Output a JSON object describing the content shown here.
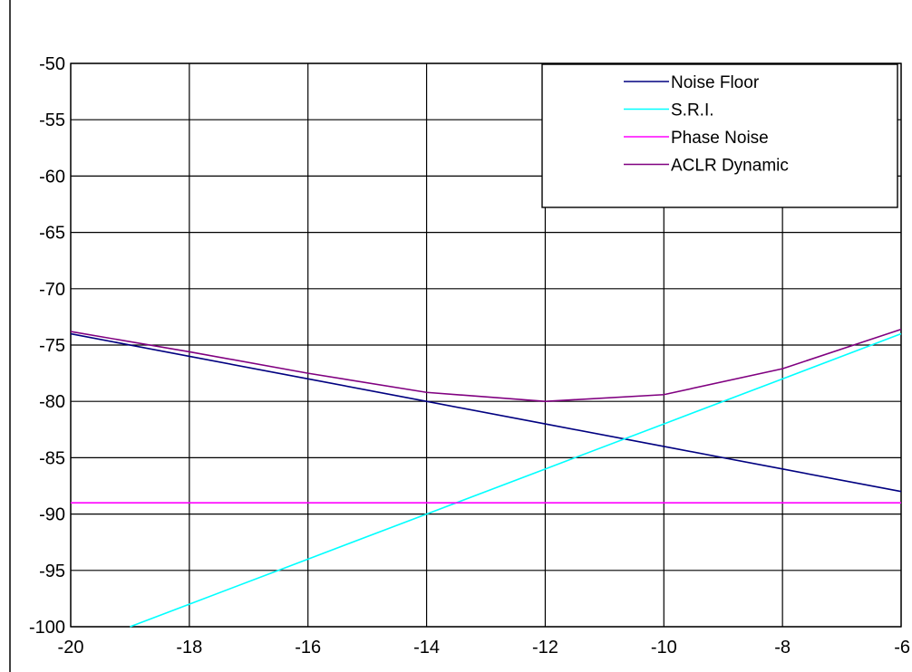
{
  "chart_data": {
    "type": "line",
    "title": "",
    "xlabel": "",
    "ylabel": "",
    "xlim": [
      -20,
      -6
    ],
    "ylim": [
      -100,
      -50
    ],
    "x_ticks": [
      -20,
      -18,
      -16,
      -14,
      -12,
      -10,
      -8,
      -6
    ],
    "y_ticks": [
      -50,
      -55,
      -60,
      -65,
      -70,
      -75,
      -80,
      -85,
      -90,
      -95,
      -100
    ],
    "x_tick_labels": [
      "-20",
      "-18",
      "-16",
      "-14",
      "-12",
      "-10",
      "-8",
      "-6"
    ],
    "y_tick_labels": [
      "-50",
      "-55",
      "-60",
      "-65",
      "-70",
      "-75",
      "-80",
      "-85",
      "-90",
      "-95",
      "-100"
    ],
    "grid": true,
    "legend_position": "top-right",
    "series": [
      {
        "name": "Noise Floor",
        "color": "#000080",
        "x": [
          -20,
          -18,
          -16,
          -14,
          -12,
          -10,
          -8,
          -6
        ],
        "y": [
          -74,
          -76,
          -78,
          -80,
          -82,
          -84,
          -86,
          -88
        ]
      },
      {
        "name": "S.R.I.",
        "color": "#00FFFF",
        "x": [
          -19,
          -18,
          -16,
          -14,
          -12,
          -10,
          -8,
          -6
        ],
        "y": [
          -100,
          -98,
          -94,
          -90,
          -86,
          -82,
          -78,
          -74
        ]
      },
      {
        "name": "Phase Noise",
        "color": "#FF00FF",
        "x": [
          -20,
          -18,
          -16,
          -14,
          -12,
          -10,
          -8,
          -6
        ],
        "y": [
          -89,
          -89,
          -89,
          -89,
          -89,
          -89,
          -89,
          -89
        ]
      },
      {
        "name": "ACLR Dynamic",
        "color": "#800080",
        "x": [
          -20,
          -18,
          -16,
          -14,
          -12,
          -10,
          -8,
          -6
        ],
        "y": [
          -73.8,
          -75.6,
          -77.5,
          -79.2,
          -80,
          -79.4,
          -77.1,
          -73.6
        ]
      }
    ]
  }
}
